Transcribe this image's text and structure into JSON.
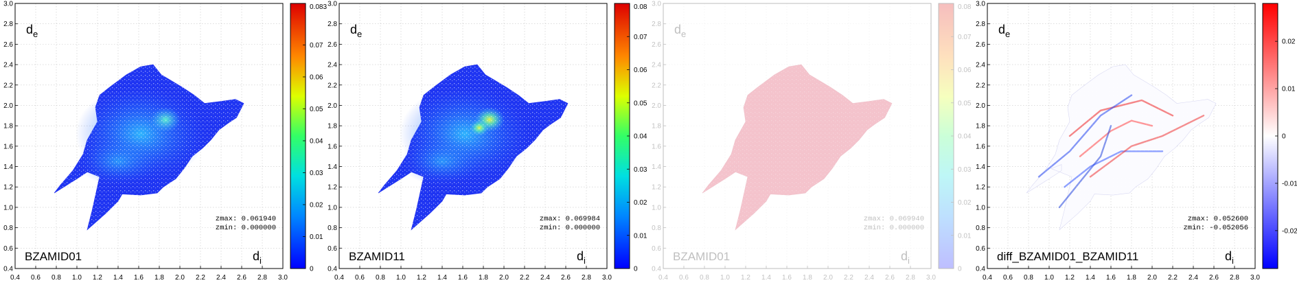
{
  "chart_data": [
    {
      "type": "heatmap",
      "name": "BZAMID01",
      "x_axis_label": "d",
      "x_axis_subscript": "i",
      "y_axis_label": "d",
      "y_axis_subscript": "e",
      "xlim": [
        0.4,
        3.0
      ],
      "ylim": [
        0.4,
        3.0
      ],
      "x_ticks": [
        "0.4",
        "0.6",
        "0.8",
        "1.0",
        "1.2",
        "1.4",
        "1.6",
        "1.8",
        "2.0",
        "2.2",
        "2.4",
        "2.6",
        "2.8",
        "3.0"
      ],
      "y_ticks": [
        "0.4",
        "0.6",
        "0.8",
        "1.0",
        "1.2",
        "1.4",
        "1.6",
        "1.8",
        "2.0",
        "2.2",
        "2.4",
        "2.6",
        "2.8",
        "3.0"
      ],
      "colorbar_range": [
        0,
        0.083
      ],
      "colorbar_ticks": [
        "0",
        "0.01",
        "0.02",
        "0.03",
        "0.04",
        "0.05",
        "0.06",
        "0.07",
        "0.083"
      ],
      "colorbar_scale": "jet",
      "zmax_text": "zmax: 0.061940",
      "zmin_text": "zmin: 0.000000",
      "grid": true,
      "faded": false
    },
    {
      "type": "heatmap",
      "name": "BZAMID11",
      "x_axis_label": "d",
      "x_axis_subscript": "i",
      "y_axis_label": "d",
      "y_axis_subscript": "e",
      "xlim": [
        0.4,
        3.0
      ],
      "ylim": [
        0.4,
        3.0
      ],
      "x_ticks": [
        "0.4",
        "0.6",
        "0.8",
        "1.0",
        "1.2",
        "1.4",
        "1.6",
        "1.8",
        "2.0",
        "2.2",
        "2.4",
        "2.6",
        "2.8",
        "3.0"
      ],
      "y_ticks": [
        "0.4",
        "0.6",
        "0.8",
        "1.0",
        "1.2",
        "1.4",
        "1.6",
        "1.8",
        "2.0",
        "2.2",
        "2.4",
        "2.6",
        "2.8",
        "3.0"
      ],
      "colorbar_range": [
        0,
        0.08
      ],
      "colorbar_ticks": [
        "0",
        "0.01",
        "0.02",
        "0.03",
        "0.04",
        "0.05",
        "0.06",
        "0.07",
        "0.08"
      ],
      "colorbar_scale": "jet",
      "zmax_text": "zmax: 0.069984",
      "zmin_text": "zmin: 0.000000",
      "grid": true,
      "faded": false
    },
    {
      "type": "heatmap",
      "name": "BZAMID01",
      "x_axis_label": "d",
      "x_axis_subscript": "i",
      "y_axis_label": "d",
      "y_axis_subscript": "e",
      "xlim": [
        0.4,
        3.0
      ],
      "ylim": [
        0.4,
        3.0
      ],
      "x_ticks": [
        "0.4",
        "0.6",
        "0.8",
        "1.0",
        "1.2",
        "1.4",
        "1.6",
        "1.8",
        "2.0",
        "2.2",
        "2.4",
        "2.6",
        "2.8",
        "3.0"
      ],
      "y_ticks": [
        "0.4",
        "0.6",
        "0.8",
        "1.0",
        "1.2",
        "1.4",
        "1.6",
        "1.8",
        "2.0",
        "2.2",
        "2.4",
        "2.6",
        "2.8",
        "3.0"
      ],
      "colorbar_range": [
        0,
        0.08
      ],
      "colorbar_ticks": [
        "0",
        "0.01",
        "0.02",
        "0.03",
        "0.04",
        "0.05",
        "0.06",
        "0.07",
        "0.08"
      ],
      "colorbar_scale": "jet",
      "zmax_text": "zmax: 0.069940",
      "zmin_text": "zmin: 0.000000",
      "grid": true,
      "faded": true
    },
    {
      "type": "heatmap",
      "name": "diff_BZAMID01_BZAMID11",
      "x_axis_label": "d",
      "x_axis_subscript": "i",
      "y_axis_label": "d",
      "y_axis_subscript": "e",
      "xlim": [
        0.4,
        3.0
      ],
      "ylim": [
        0.4,
        3.0
      ],
      "x_ticks": [
        "0.4",
        "0.6",
        "0.8",
        "1.0",
        "1.2",
        "1.4",
        "1.6",
        "1.8",
        "2.0",
        "2.2",
        "2.4",
        "2.6",
        "2.8",
        "3.0"
      ],
      "y_ticks": [
        "0.4",
        "0.6",
        "0.8",
        "1.0",
        "1.2",
        "1.4",
        "1.6",
        "1.8",
        "2.0",
        "2.2",
        "2.4",
        "2.6",
        "2.8",
        "3.0"
      ],
      "colorbar_range": [
        -0.028,
        0.028
      ],
      "colorbar_ticks": [
        "-0.02",
        "-0.01",
        "0",
        "0.01",
        "0.02"
      ],
      "colorbar_scale": "blue-white-red",
      "zmax_text": "zmax: 0.052600",
      "zmin_text": "zmin: -0.052056",
      "grid": true,
      "faded": false
    }
  ]
}
